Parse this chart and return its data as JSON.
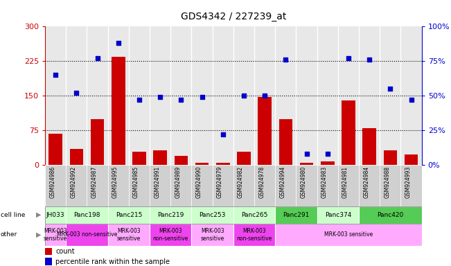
{
  "title": "GDS4342 / 227239_at",
  "gsm_labels": [
    "GSM924986",
    "GSM924992",
    "GSM924987",
    "GSM924995",
    "GSM924985",
    "GSM924991",
    "GSM924989",
    "GSM924990",
    "GSM924979",
    "GSM924982",
    "GSM924978",
    "GSM924994",
    "GSM924980",
    "GSM924983",
    "GSM924981",
    "GSM924984",
    "GSM924988",
    "GSM924993"
  ],
  "counts": [
    68,
    35,
    100,
    235,
    28,
    32,
    20,
    5,
    5,
    28,
    148,
    100,
    5,
    8,
    140,
    80,
    32,
    22
  ],
  "percentile": [
    65,
    52,
    77,
    88,
    47,
    49,
    47,
    49,
    22,
    50,
    50,
    76,
    8,
    8,
    77,
    76,
    55,
    47
  ],
  "cell_lines": [
    {
      "name": "JH033",
      "start": 0,
      "end": 1,
      "color": "#ccffcc"
    },
    {
      "name": "Panc198",
      "start": 1,
      "end": 3,
      "color": "#ccffcc"
    },
    {
      "name": "Panc215",
      "start": 3,
      "end": 5,
      "color": "#ccffcc"
    },
    {
      "name": "Panc219",
      "start": 5,
      "end": 7,
      "color": "#ccffcc"
    },
    {
      "name": "Panc253",
      "start": 7,
      "end": 9,
      "color": "#ccffcc"
    },
    {
      "name": "Panc265",
      "start": 9,
      "end": 11,
      "color": "#ccffcc"
    },
    {
      "name": "Panc291",
      "start": 11,
      "end": 13,
      "color": "#55cc55"
    },
    {
      "name": "Panc374",
      "start": 13,
      "end": 15,
      "color": "#ccffcc"
    },
    {
      "name": "Panc420",
      "start": 15,
      "end": 18,
      "color": "#55cc55"
    }
  ],
  "other_groups": [
    {
      "name": "MRK-003\nsensitive",
      "start": 0,
      "end": 1,
      "color": "#ffaaff"
    },
    {
      "name": "MRK-003 non-sensitive",
      "start": 1,
      "end": 3,
      "color": "#ee44ee"
    },
    {
      "name": "MRK-003\nsensitive",
      "start": 3,
      "end": 5,
      "color": "#ffaaff"
    },
    {
      "name": "MRK-003\nnon-sensitive",
      "start": 5,
      "end": 7,
      "color": "#ee44ee"
    },
    {
      "name": "MRK-003\nsensitive",
      "start": 7,
      "end": 9,
      "color": "#ffaaff"
    },
    {
      "name": "MRK-003\nnon-sensitive",
      "start": 9,
      "end": 11,
      "color": "#ee44ee"
    },
    {
      "name": "MRK-003 sensitive",
      "start": 11,
      "end": 18,
      "color": "#ffaaff"
    }
  ],
  "bar_color": "#cc0000",
  "dot_color": "#0000cc",
  "ylim_left": [
    0,
    300
  ],
  "ylim_right": [
    0,
    100
  ],
  "yticks_left": [
    0,
    75,
    150,
    225,
    300
  ],
  "yticks_right": [
    0,
    25,
    50,
    75,
    100
  ],
  "ytick_labels_right": [
    "0%",
    "25%",
    "50%",
    "75%",
    "100%"
  ],
  "hlines": [
    75,
    150,
    225
  ],
  "plot_bg": "#e8e8e8",
  "xticklabel_bg": "#d0d0d0"
}
